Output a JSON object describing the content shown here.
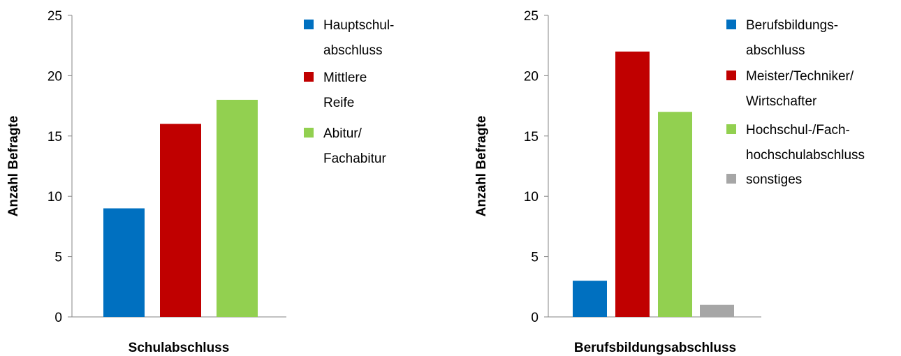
{
  "chart_data": [
    {
      "type": "bar",
      "xlabel": "Schulabschluss",
      "ylabel": "Anzahl Befragte",
      "ylim": [
        0,
        25
      ],
      "yticks": [
        0,
        5,
        10,
        15,
        20,
        25
      ],
      "legend": "right",
      "series": [
        {
          "name": "Hauptschul-\nabschluss",
          "color": "#0070c0",
          "values": [
            9
          ]
        },
        {
          "name": "Mittlere\nReife",
          "color": "#c00000",
          "values": [
            16
          ]
        },
        {
          "name": "Abitur/\nFachabitur",
          "color": "#92d050",
          "values": [
            18
          ]
        }
      ]
    },
    {
      "type": "bar",
      "xlabel": "Berufsbildungsabschluss",
      "ylabel": "Anzahl Befragte",
      "ylim": [
        0,
        25
      ],
      "yticks": [
        0,
        5,
        10,
        15,
        20,
        25
      ],
      "legend": "right",
      "series": [
        {
          "name": "Berufsbildungs-\nabschluss",
          "color": "#0070c0",
          "values": [
            3
          ]
        },
        {
          "name": "Meister/Techniker/\nWirtschafter",
          "color": "#c00000",
          "values": [
            22
          ]
        },
        {
          "name": "Hochschul-/Fach-\nhochschulabschluss",
          "color": "#92d050",
          "values": [
            17
          ]
        },
        {
          "name": "sonstiges",
          "color": "#a6a6a6",
          "values": [
            1
          ]
        }
      ]
    }
  ]
}
